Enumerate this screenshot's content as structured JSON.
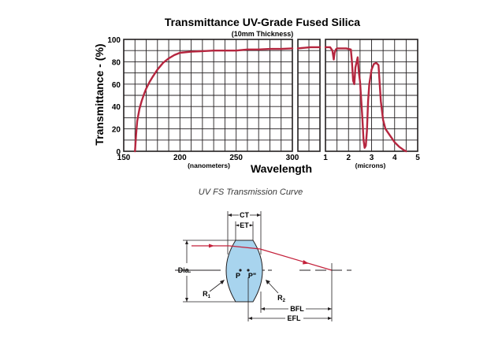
{
  "chart_data": {
    "type": "line",
    "title": "Transmittance UV-Grade Fused Silica",
    "subtitle": "(10mm Thickness)",
    "ylabel": "Transmittance - (%)",
    "xlabel": "Wavelength",
    "ylim": [
      0,
      100
    ],
    "yticks": [
      "0",
      "20",
      "40",
      "60",
      "80",
      "100"
    ],
    "grid": true,
    "panels": [
      {
        "unit": "(nanometers)",
        "xlim": [
          150,
          300
        ],
        "xticks": [
          "150",
          "200",
          "250",
          "300"
        ]
      },
      {
        "unit": "",
        "xlim": [
          300,
          1000
        ],
        "xticks": []
      },
      {
        "unit": "(microns)",
        "xlim": [
          1,
          5
        ],
        "xticks": [
          "1",
          "2",
          "3",
          "4",
          "5"
        ]
      }
    ],
    "series": [
      {
        "color": "#b5263f",
        "segments": [
          {
            "x": [
              160,
              161,
              162,
              164,
              166,
              168,
              170,
              173,
              176,
              180,
              185,
              190,
              195,
              200,
              210,
              220,
              230,
              240,
              250,
              260,
              270,
              280,
              290,
              300
            ],
            "y": [
              0,
              15,
              27,
              38,
              45,
              51,
              56,
              62,
              67,
              73,
              79,
              83,
              86,
              88,
              89,
              89.5,
              90,
              90,
              90,
              91,
              91,
              91.5,
              91.5,
              92
            ]
          },
          {
            "x": [
              300,
              500,
              700,
              900,
              1000
            ],
            "y": [
              92,
              92.5,
              93,
              93,
              93
            ]
          },
          {
            "x": [
              1.0,
              1.1,
              1.2,
              1.3,
              1.36,
              1.4,
              1.45,
              1.5,
              1.7,
              1.9,
              2.1,
              2.15,
              2.2,
              2.25,
              2.3,
              2.4,
              2.45,
              2.5,
              2.6,
              2.65,
              2.7,
              2.75,
              2.8,
              2.85,
              2.9,
              3.0,
              3.1,
              3.2,
              3.3,
              3.4,
              3.5,
              3.6,
              3.8,
              4.0,
              4.2,
              4.4,
              4.5
            ],
            "y": [
              93,
              93,
              93,
              90,
              82,
              88,
              91,
              92,
              92,
              92,
              91,
              80,
              63,
              60,
              75,
              84,
              70,
              62,
              30,
              10,
              3,
              5,
              18,
              45,
              60,
              73,
              78,
              79,
              77,
              45,
              28,
              20,
              14,
              8,
              4,
              1,
              0
            ]
          }
        ]
      }
    ]
  },
  "caption": "UV FS Transmission Curve",
  "lens_diagram": {
    "labels": {
      "ct": "CT",
      "et": "ET",
      "dia": "Dia.",
      "p": "P",
      "p_prime": "P\"",
      "r1_main": "R",
      "r1_sub": "1",
      "r2_main": "R",
      "r2_sub": "2",
      "bfl": "BFL",
      "efl": "EFL"
    },
    "ray_color": "#c4213b",
    "lens_color": "#a8d4ee"
  }
}
